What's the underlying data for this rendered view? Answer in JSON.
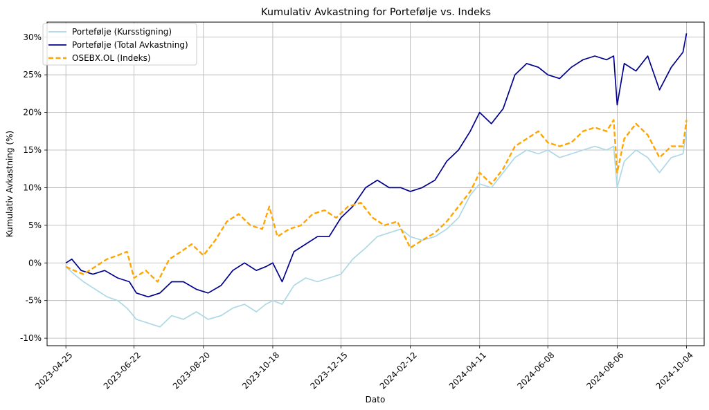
{
  "chart_data": {
    "type": "line",
    "title": "Kumulativ Avkastning for Portefølje vs. Indeks",
    "xlabel": "Dato",
    "ylabel": "Kumulativ Avkastning (%)",
    "x_start": "2023-04-25",
    "x_end": "2024-10-04",
    "xlim": [
      "2023-04-09",
      "2024-10-19"
    ],
    "ylim": [
      -11,
      32
    ],
    "x_ticks": [
      "2023-04-25",
      "2023-06-22",
      "2023-08-20",
      "2023-10-18",
      "2023-12-15",
      "2024-02-12",
      "2024-04-11",
      "2024-06-08",
      "2024-08-06",
      "2024-10-04"
    ],
    "y_ticks": [
      -10,
      -5,
      0,
      5,
      10,
      15,
      20,
      25,
      30
    ],
    "y_tick_format": "{v}%",
    "grid": true,
    "legend_position": "top-left",
    "series": [
      {
        "name": "Portefølje (Kursstigning)",
        "color": "#add8e6",
        "style": "solid",
        "x": [
          "2023-04-25",
          "2023-05-02",
          "2023-05-10",
          "2023-05-20",
          "2023-05-30",
          "2023-06-08",
          "2023-06-16",
          "2023-06-24",
          "2023-07-04",
          "2023-07-14",
          "2023-07-24",
          "2023-08-03",
          "2023-08-14",
          "2023-08-24",
          "2023-09-04",
          "2023-09-14",
          "2023-09-24",
          "2023-10-04",
          "2023-10-12",
          "2023-10-18",
          "2023-10-26",
          "2023-11-05",
          "2023-11-15",
          "2023-11-25",
          "2023-12-05",
          "2023-12-15",
          "2023-12-25",
          "2024-01-05",
          "2024-01-15",
          "2024-01-25",
          "2024-02-04",
          "2024-02-12",
          "2024-02-22",
          "2024-03-04",
          "2024-03-14",
          "2024-03-24",
          "2024-04-03",
          "2024-04-11",
          "2024-04-21",
          "2024-05-01",
          "2024-05-11",
          "2024-05-21",
          "2024-05-31",
          "2024-06-08",
          "2024-06-18",
          "2024-06-28",
          "2024-07-08",
          "2024-07-18",
          "2024-07-28",
          "2024-08-03",
          "2024-08-06",
          "2024-08-12",
          "2024-08-22",
          "2024-09-01",
          "2024-09-11",
          "2024-09-21",
          "2024-10-01",
          "2024-10-04"
        ],
        "y": [
          -0.5,
          -1.5,
          -2.5,
          -3.5,
          -4.5,
          -5.0,
          -6.0,
          -7.5,
          -8.0,
          -8.5,
          -7.0,
          -7.5,
          -6.5,
          -7.5,
          -7.0,
          -6.0,
          -5.5,
          -6.5,
          -5.5,
          -5.0,
          -5.5,
          -3.0,
          -2.0,
          -2.5,
          -2.0,
          -1.5,
          0.5,
          2.0,
          3.5,
          4.0,
          4.5,
          3.5,
          3.0,
          3.5,
          4.5,
          6.0,
          9.0,
          10.5,
          10.0,
          12.0,
          14.0,
          15.0,
          14.5,
          15.0,
          14.0,
          14.5,
          15.0,
          15.5,
          15.0,
          15.5,
          10.0,
          13.5,
          15.0,
          14.0,
          12.0,
          14.0,
          14.5,
          17.5
        ]
      },
      {
        "name": "Portefølje (Total Avkastning)",
        "color": "#00008b",
        "style": "solid",
        "x": [
          "2023-04-25",
          "2023-04-30",
          "2023-05-08",
          "2023-05-18",
          "2023-05-28",
          "2023-06-08",
          "2023-06-18",
          "2023-06-24",
          "2023-07-04",
          "2023-07-14",
          "2023-07-24",
          "2023-08-03",
          "2023-08-14",
          "2023-08-24",
          "2023-09-04",
          "2023-09-14",
          "2023-09-24",
          "2023-10-04",
          "2023-10-12",
          "2023-10-18",
          "2023-10-26",
          "2023-11-05",
          "2023-11-15",
          "2023-11-25",
          "2023-12-05",
          "2023-12-15",
          "2023-12-25",
          "2024-01-05",
          "2024-01-15",
          "2024-01-25",
          "2024-02-04",
          "2024-02-12",
          "2024-02-22",
          "2024-03-04",
          "2024-03-14",
          "2024-03-24",
          "2024-04-03",
          "2024-04-11",
          "2024-04-21",
          "2024-05-01",
          "2024-05-11",
          "2024-05-21",
          "2024-05-31",
          "2024-06-08",
          "2024-06-18",
          "2024-06-28",
          "2024-07-08",
          "2024-07-18",
          "2024-07-28",
          "2024-08-03",
          "2024-08-06",
          "2024-08-12",
          "2024-08-22",
          "2024-09-01",
          "2024-09-11",
          "2024-09-21",
          "2024-10-01",
          "2024-10-04"
        ],
        "y": [
          0.0,
          0.5,
          -1.0,
          -1.5,
          -1.0,
          -2.0,
          -2.5,
          -4.0,
          -4.5,
          -4.0,
          -2.5,
          -2.5,
          -3.5,
          -4.0,
          -3.0,
          -1.0,
          0.0,
          -1.0,
          -0.5,
          0.0,
          -2.5,
          1.5,
          2.5,
          3.5,
          3.5,
          6.0,
          7.5,
          10.0,
          11.0,
          10.0,
          10.0,
          9.5,
          10.0,
          11.0,
          13.5,
          15.0,
          17.5,
          20.0,
          18.5,
          20.5,
          25.0,
          26.5,
          26.0,
          25.0,
          24.5,
          26.0,
          27.0,
          27.5,
          27.0,
          27.5,
          21.0,
          26.5,
          25.5,
          27.5,
          23.0,
          26.0,
          28.0,
          30.5
        ]
      },
      {
        "name": "OSEBX.OL (Indeks)",
        "color": "#ffa500",
        "style": "dashed",
        "x": [
          "2023-04-25",
          "2023-05-02",
          "2023-05-10",
          "2023-05-20",
          "2023-05-30",
          "2023-06-08",
          "2023-06-16",
          "2023-06-22",
          "2023-07-02",
          "2023-07-12",
          "2023-07-22",
          "2023-08-01",
          "2023-08-10",
          "2023-08-20",
          "2023-08-30",
          "2023-09-09",
          "2023-09-19",
          "2023-09-29",
          "2023-10-09",
          "2023-10-15",
          "2023-10-22",
          "2023-11-01",
          "2023-11-11",
          "2023-11-21",
          "2023-12-01",
          "2023-12-11",
          "2023-12-21",
          "2024-01-01",
          "2024-01-11",
          "2024-01-21",
          "2024-02-01",
          "2024-02-12",
          "2024-02-22",
          "2024-03-04",
          "2024-03-14",
          "2024-03-24",
          "2024-04-03",
          "2024-04-11",
          "2024-04-21",
          "2024-05-01",
          "2024-05-11",
          "2024-05-21",
          "2024-05-31",
          "2024-06-08",
          "2024-06-18",
          "2024-06-28",
          "2024-07-08",
          "2024-07-18",
          "2024-07-28",
          "2024-08-03",
          "2024-08-06",
          "2024-08-12",
          "2024-08-22",
          "2024-09-01",
          "2024-09-11",
          "2024-09-21",
          "2024-10-01",
          "2024-10-04"
        ],
        "y": [
          -0.5,
          -1.0,
          -1.5,
          -0.5,
          0.5,
          1.0,
          1.5,
          -2.0,
          -1.0,
          -2.5,
          0.5,
          1.5,
          2.5,
          1.0,
          3.0,
          5.5,
          6.5,
          5.0,
          4.5,
          7.5,
          3.5,
          4.5,
          5.0,
          6.5,
          7.0,
          6.0,
          7.5,
          8.0,
          6.0,
          5.0,
          5.5,
          2.0,
          3.0,
          4.0,
          5.5,
          7.5,
          9.5,
          12.0,
          10.5,
          12.5,
          15.5,
          16.5,
          17.5,
          16.0,
          15.5,
          16.0,
          17.5,
          18.0,
          17.5,
          19.0,
          12.0,
          16.5,
          18.5,
          17.0,
          14.0,
          15.5,
          15.5,
          19.0
        ]
      }
    ]
  }
}
